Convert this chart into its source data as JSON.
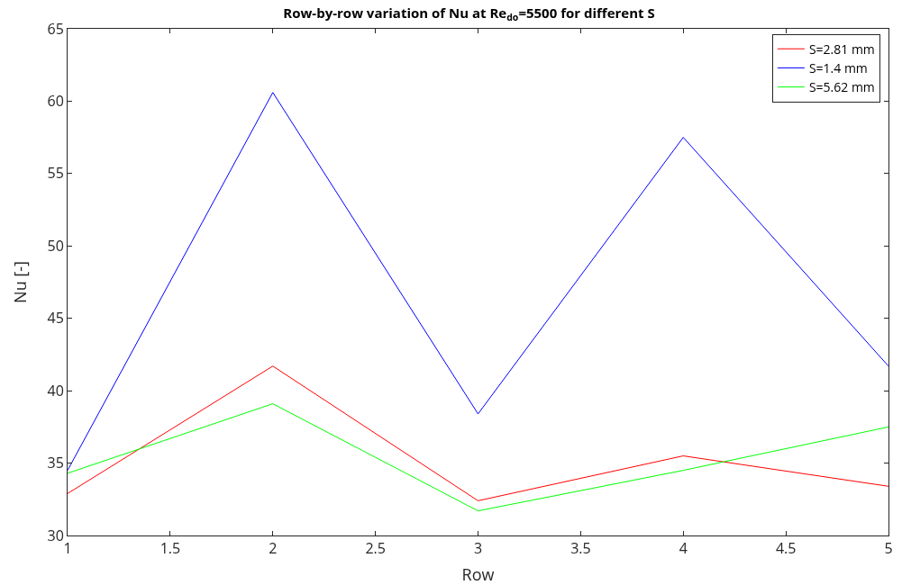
{
  "chart_data": {
    "type": "line",
    "title": "Row-by-row variation of Nu at Re$_{do}$=5500 for different S",
    "xlabel": "Row",
    "ylabel": "Nu [-]",
    "x": [
      1,
      2,
      3,
      4,
      5
    ],
    "series": [
      {
        "name": "S=2.81 mm",
        "color": "#ff0000",
        "values": [
          32.9,
          41.7,
          32.4,
          35.5,
          33.4
        ]
      },
      {
        "name": "S=1.4 mm",
        "color": "#0000ff",
        "values": [
          34.5,
          60.6,
          38.4,
          57.5,
          41.7
        ]
      },
      {
        "name": "S=5.62 mm",
        "color": "#00ff00",
        "values": [
          34.3,
          39.1,
          31.7,
          34.5,
          37.5
        ]
      }
    ],
    "xlim": [
      1,
      5
    ],
    "xticks": [
      1,
      1.5,
      2,
      2.5,
      3,
      3.5,
      4,
      4.5,
      5
    ],
    "ylim": [
      30,
      65
    ],
    "yticks": [
      30,
      35,
      40,
      45,
      50,
      55,
      60,
      65
    ],
    "grid": false,
    "legend": "top right",
    "marker": "none",
    "line_style": "solid"
  }
}
